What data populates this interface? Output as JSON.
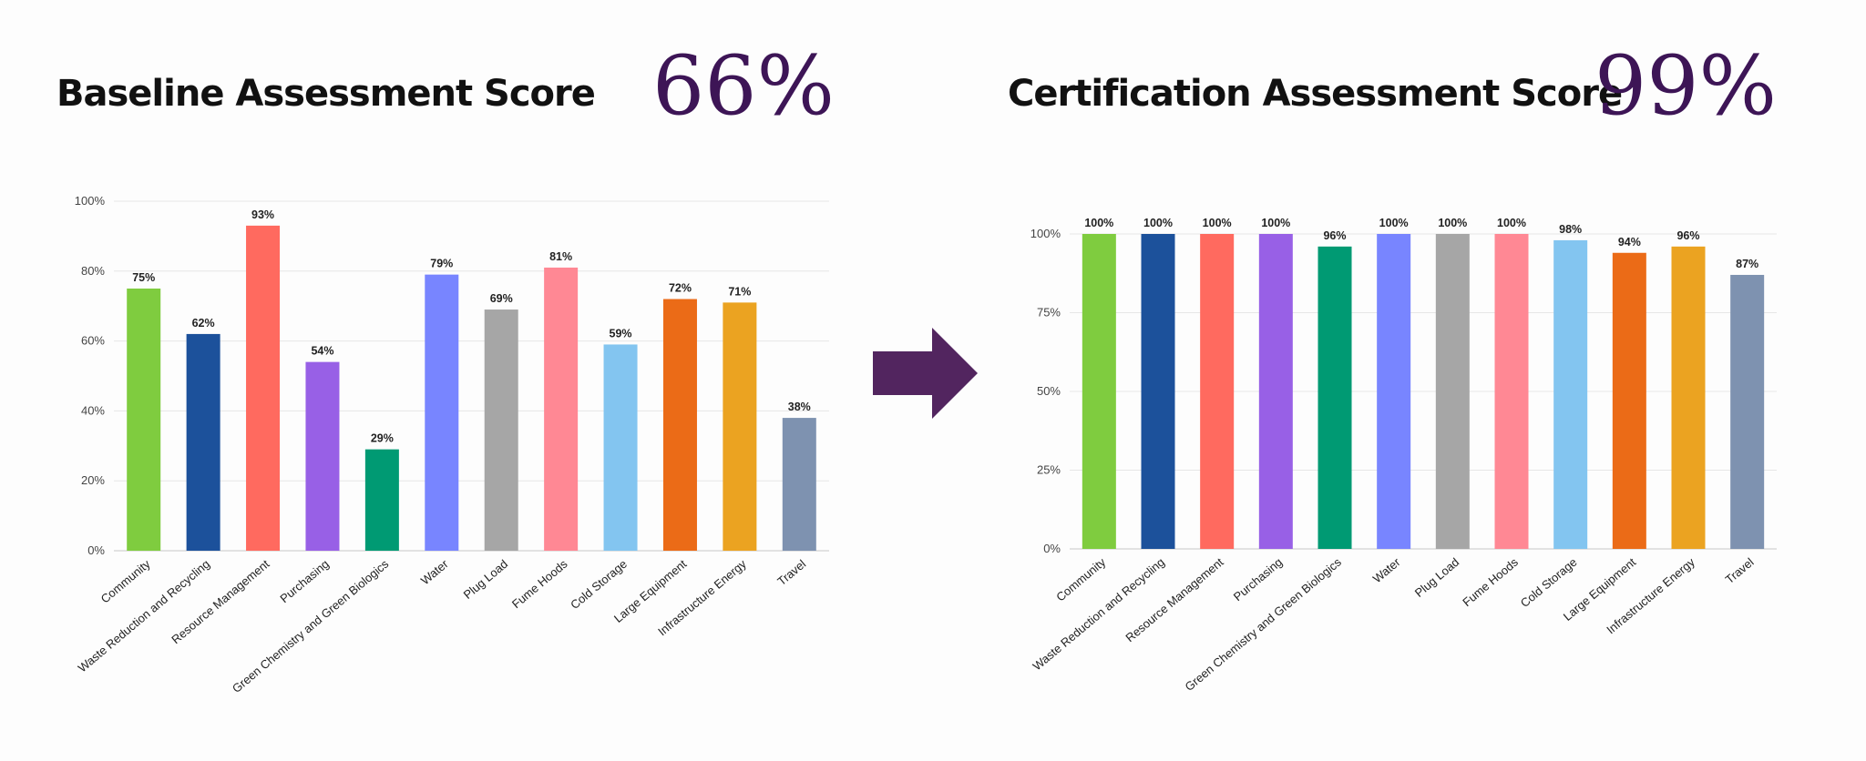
{
  "left": {
    "title": "Baseline Assessment Score",
    "score": "66%"
  },
  "right": {
    "title": "Certification Assessment Score",
    "score": "99%"
  },
  "arrow": {
    "color": "#52255f",
    "icon": "arrow-right-icon"
  },
  "chart_data": [
    {
      "type": "bar",
      "categories": [
        "Community",
        "Waste Reduction and Recycling",
        "Resource Management",
        "Purchasing",
        "Green Chemistry and Green Biologics",
        "Water",
        "Plug Load",
        "Fume Hoods",
        "Cold Storage",
        "Large Equipment",
        "Infrastructure Energy",
        "Travel"
      ],
      "values": [
        75,
        62,
        93,
        54,
        29,
        79,
        69,
        81,
        59,
        72,
        71,
        38
      ],
      "data_labels": [
        "75%",
        "62%",
        "93%",
        "54%",
        "29%",
        "79%",
        "69%",
        "81%",
        "59%",
        "72%",
        "71%",
        "38%"
      ],
      "colors": [
        "#7fcc3f",
        "#1c519b",
        "#ff6a5f",
        "#9860e6",
        "#009a73",
        "#7885ff",
        "#a6a6a6",
        "#ff8894",
        "#83c5f0",
        "#eb6b17",
        "#eba321",
        "#7e92b0"
      ],
      "ylim": [
        0,
        100
      ],
      "yticks": [
        0,
        20,
        40,
        60,
        80,
        100
      ],
      "ytick_labels": [
        "0%",
        "20%",
        "40%",
        "60%",
        "80%",
        "100%"
      ],
      "grid": true
    },
    {
      "type": "bar",
      "categories": [
        "Community",
        "Waste Reduction and Recycling",
        "Resource Management",
        "Purchasing",
        "Green Chemistry and Green Biologics",
        "Water",
        "Plug Load",
        "Fume Hoods",
        "Cold Storage",
        "Large Equipment",
        "Infrastructure Energy",
        "Travel"
      ],
      "values": [
        100,
        100,
        100,
        100,
        96,
        100,
        100,
        100,
        98,
        94,
        96,
        87
      ],
      "data_labels": [
        "100%",
        "100%",
        "100%",
        "100%",
        "96%",
        "100%",
        "100%",
        "100%",
        "98%",
        "94%",
        "96%",
        "87%"
      ],
      "colors": [
        "#7fcc3f",
        "#1c519b",
        "#ff6a5f",
        "#9860e6",
        "#009a73",
        "#7885ff",
        "#a6a6a6",
        "#ff8894",
        "#83c5f0",
        "#eb6b17",
        "#eba321",
        "#7e92b0"
      ],
      "ylim": [
        0,
        100
      ],
      "yticks": [
        0,
        25,
        50,
        75,
        100
      ],
      "ytick_labels": [
        "0%",
        "25%",
        "50%",
        "75%",
        "100%"
      ],
      "grid": true
    }
  ]
}
